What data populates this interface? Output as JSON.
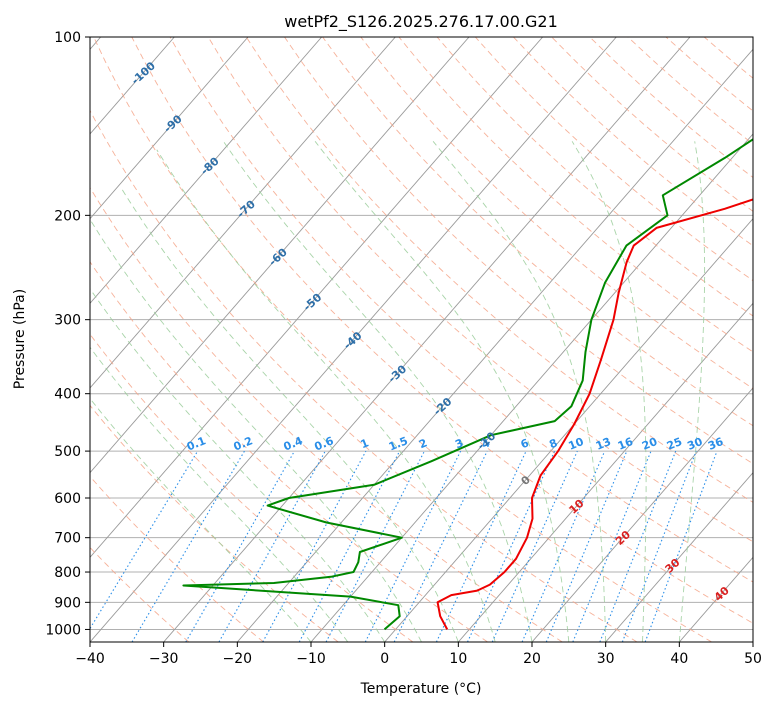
{
  "chart_data": {
    "type": "line",
    "title": "wetPf2_S126.2025.276.17.00.G21",
    "xlabel": "Temperature (°C)",
    "ylabel": "Pressure (hPa)",
    "xlim": [
      -40,
      50
    ],
    "ylim": [
      1050,
      100
    ],
    "y_scale": "log",
    "x_ticks": [
      -40,
      -30,
      -20,
      -10,
      0,
      10,
      20,
      30,
      40,
      50
    ],
    "x_tick_labels": [
      "−40",
      "−30",
      "−20",
      "−10",
      "0",
      "10",
      "20",
      "30",
      "40",
      "50"
    ],
    "y_ticks": [
      100,
      200,
      300,
      400,
      500,
      600,
      700,
      800,
      900,
      1000
    ],
    "y_tick_labels": [
      "100",
      "200",
      "300",
      "400",
      "500",
      "600",
      "700",
      "800",
      "900",
      "1000"
    ],
    "grid": true,
    "skew": true,
    "colors": {
      "temperature": "#ee0000",
      "dewpoint": "#008800",
      "isotherm": "#9a9a9a",
      "dry_adiabat": "#f4a488",
      "moist_adiabat": "#9acd9a",
      "mixing_ratio": "#2a8ee8",
      "isotherm_labels": "#2e6fa8",
      "theta_labels": "#d92020"
    },
    "series": [
      {
        "key": "temperature",
        "points": [
          [
            7,
            1000
          ],
          [
            4.5,
            950
          ],
          [
            2.5,
            900
          ],
          [
            3.5,
            875
          ],
          [
            6.5,
            860
          ],
          [
            7.5,
            840
          ],
          [
            8,
            800
          ],
          [
            8,
            760
          ],
          [
            7,
            700
          ],
          [
            5.5,
            650
          ],
          [
            3,
            600
          ],
          [
            1.5,
            550
          ],
          [
            1,
            500
          ],
          [
            0,
            450
          ],
          [
            -1.5,
            400
          ],
          [
            -4,
            350
          ],
          [
            -7,
            300
          ],
          [
            -9.5,
            270
          ],
          [
            -12,
            240
          ],
          [
            -13,
            225
          ],
          [
            -12,
            210
          ],
          [
            -5,
            195
          ],
          [
            1,
            180
          ],
          [
            4.5,
            160
          ],
          [
            6.5,
            140
          ],
          [
            8.5,
            120
          ],
          [
            10,
            100
          ]
        ]
      },
      {
        "key": "dewpoint",
        "points": [
          [
            -1.5,
            1000
          ],
          [
            -1,
            950
          ],
          [
            -2.5,
            910
          ],
          [
            -10,
            880
          ],
          [
            -34,
            843
          ],
          [
            -22,
            835
          ],
          [
            -15,
            815
          ],
          [
            -12.5,
            800
          ],
          [
            -13,
            770
          ],
          [
            -14,
            740
          ],
          [
            -10,
            700
          ],
          [
            -22,
            660
          ],
          [
            -32,
            618
          ],
          [
            -30,
            600
          ],
          [
            -20,
            570
          ],
          [
            -15,
            520
          ],
          [
            -10,
            470
          ],
          [
            -3,
            445
          ],
          [
            -2.5,
            420
          ],
          [
            -4,
            380
          ],
          [
            -7,
            340
          ],
          [
            -10,
            300
          ],
          [
            -12.5,
            260
          ],
          [
            -14,
            225
          ],
          [
            -12,
            200
          ],
          [
            -15,
            185
          ],
          [
            -11,
            160
          ],
          [
            -8,
            140
          ],
          [
            -3,
            120
          ],
          [
            2,
            100
          ]
        ]
      }
    ],
    "isotherm_labels": [
      "-100",
      "-90",
      "-80",
      "-70",
      "-60",
      "-50",
      "-40",
      "-30",
      "-20",
      "-10",
      "0"
    ],
    "theta_labels": [
      "10",
      "20",
      "30",
      "40"
    ],
    "mixing_ratio_labels": [
      "0.1",
      "0.2",
      "0.4",
      "0.6",
      "1",
      "1.5",
      "2",
      "3",
      "4",
      "6",
      "8",
      "10",
      "13",
      "16",
      "20",
      "25",
      "30",
      "36"
    ],
    "mixing_ratio_values": [
      0.1,
      0.2,
      0.4,
      0.6,
      1,
      1.5,
      2,
      3,
      4,
      6,
      8,
      10,
      13,
      16,
      20,
      25,
      30,
      36
    ]
  }
}
